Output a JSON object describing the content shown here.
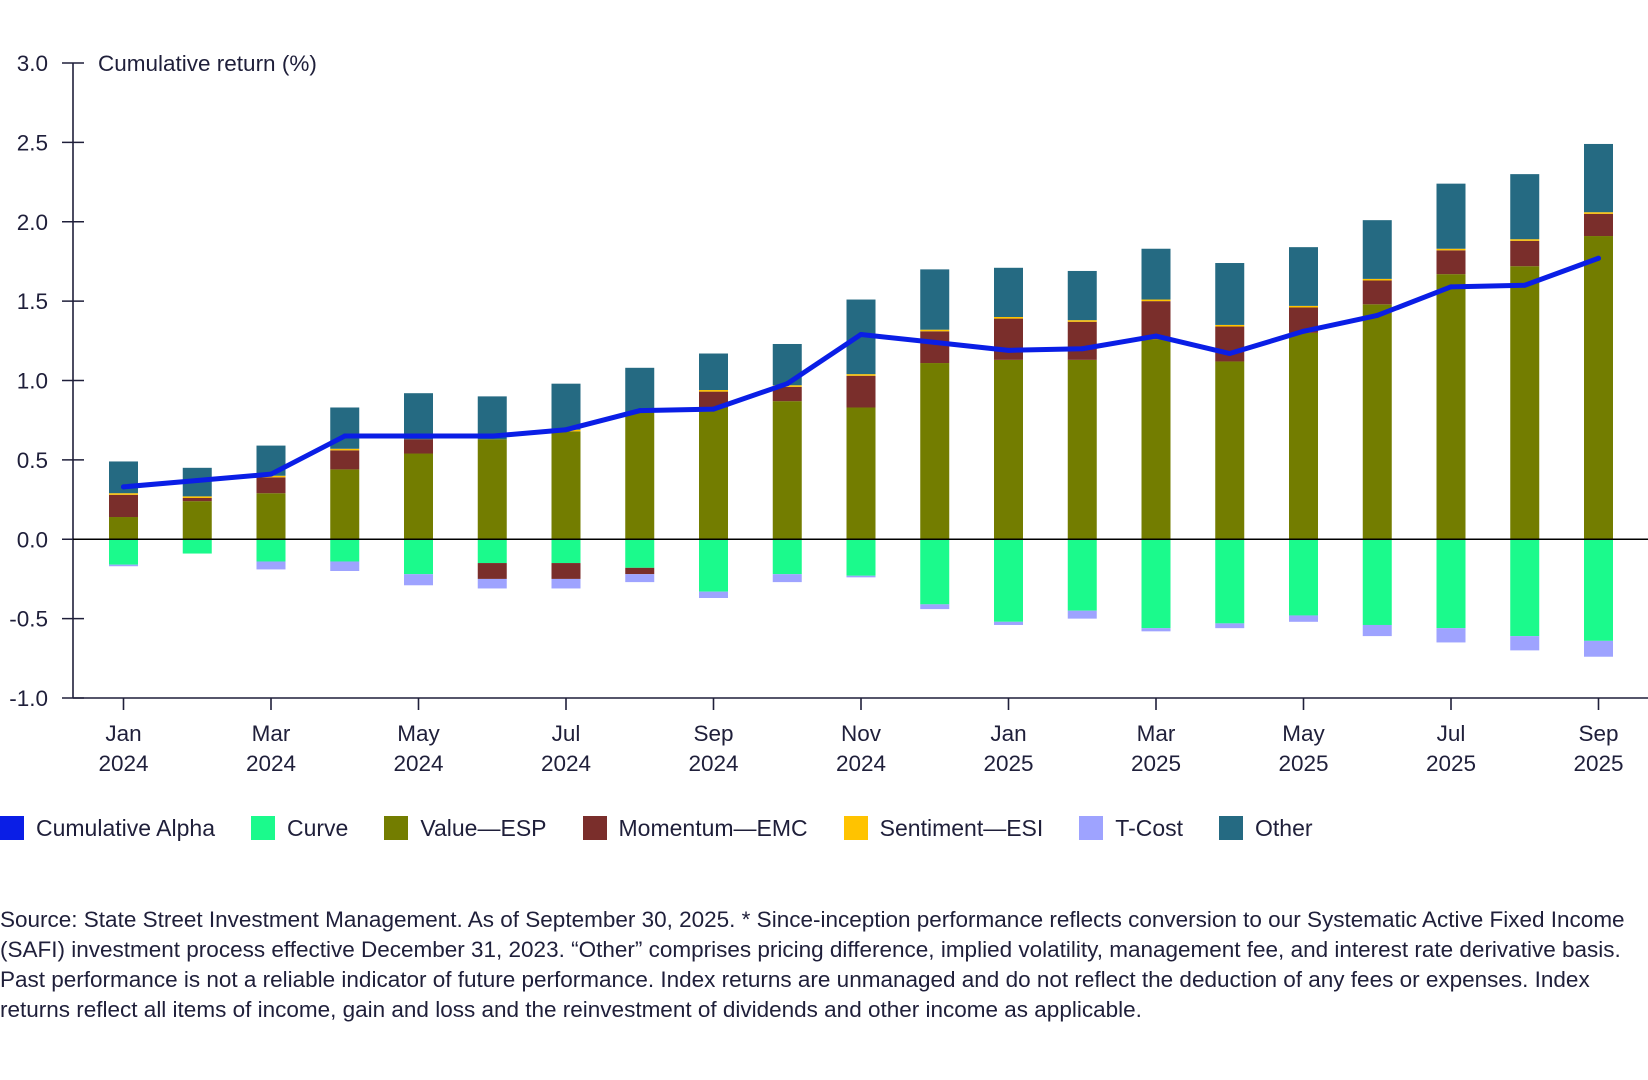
{
  "colors": {
    "alpha": "#0a1ee6",
    "curve": "#1bfa8c",
    "value": "#737d00",
    "momentum": "#7a2e2b",
    "sentiment": "#ffc300",
    "tcost": "#9ea3ff",
    "other": "#256a82",
    "axis": "#1f1f3a"
  },
  "chart_data": {
    "type": "bar",
    "stacked": true,
    "ylabel": "Cumulative return (%)",
    "ylim": [
      -1.0,
      3.0
    ],
    "yticks": [
      -1.0,
      -0.5,
      0.0,
      0.5,
      1.0,
      1.5,
      2.0,
      2.5,
      3.0
    ],
    "ytick_labels": [
      "-1.0",
      "-0.5",
      "0.0",
      "0.5",
      "1.0",
      "1.5",
      "2.0",
      "2.5",
      "3.0"
    ],
    "categories": [
      "Jan 2024",
      "Feb 2024",
      "Mar 2024",
      "Apr 2024",
      "May 2024",
      "Jun 2024",
      "Jul 2024",
      "Aug 2024",
      "Sep 2024",
      "Oct 2024",
      "Nov 2024",
      "Dec 2024",
      "Jan 2025",
      "Feb 2025",
      "Mar 2025",
      "Apr 2025",
      "May 2025",
      "Jun 2025",
      "Jul 2025",
      "Aug 2025",
      "Sep 2025"
    ],
    "xtick_labels": [
      {
        "index": 0,
        "month": "Jan",
        "year": "2024"
      },
      {
        "index": 2,
        "month": "Mar",
        "year": "2024"
      },
      {
        "index": 4,
        "month": "May",
        "year": "2024"
      },
      {
        "index": 6,
        "month": "Jul",
        "year": "2024"
      },
      {
        "index": 8,
        "month": "Sep",
        "year": "2024"
      },
      {
        "index": 10,
        "month": "Nov",
        "year": "2024"
      },
      {
        "index": 12,
        "month": "Jan",
        "year": "2025"
      },
      {
        "index": 14,
        "month": "Mar",
        "year": "2025"
      },
      {
        "index": 16,
        "month": "May",
        "year": "2025"
      },
      {
        "index": 18,
        "month": "Jul",
        "year": "2025"
      },
      {
        "index": 20,
        "month": "Sep",
        "year": "2025"
      }
    ],
    "series": [
      {
        "name": "Curve",
        "key": "curve",
        "values": [
          -0.16,
          -0.09,
          -0.14,
          -0.14,
          -0.22,
          -0.15,
          -0.15,
          -0.18,
          -0.33,
          -0.22,
          -0.23,
          -0.41,
          -0.52,
          -0.45,
          -0.56,
          -0.53,
          -0.48,
          -0.54,
          -0.56,
          -0.61,
          -0.64
        ]
      },
      {
        "name": "Value—ESP",
        "key": "value",
        "values": [
          0.14,
          0.24,
          0.29,
          0.44,
          0.54,
          0.63,
          0.68,
          0.8,
          0.83,
          0.87,
          0.83,
          1.11,
          1.13,
          1.13,
          1.26,
          1.12,
          1.3,
          1.48,
          1.67,
          1.72,
          1.91
        ]
      },
      {
        "name": "Momentum—EMC",
        "key": "momentum",
        "values": [
          0.14,
          0.02,
          0.1,
          0.12,
          0.09,
          -0.1,
          -0.1,
          -0.04,
          0.1,
          0.09,
          0.2,
          0.2,
          0.26,
          0.24,
          0.24,
          0.22,
          0.16,
          0.15,
          0.15,
          0.16,
          0.14
        ]
      },
      {
        "name": "Sentiment—ESI",
        "key": "sentiment",
        "values": [
          0.01,
          0.01,
          0.01,
          0.01,
          0.0,
          0.0,
          0.01,
          0.0,
          0.01,
          0.01,
          0.01,
          0.01,
          0.01,
          0.01,
          0.01,
          0.01,
          0.01,
          0.01,
          0.01,
          0.01,
          0.01
        ]
      },
      {
        "name": "T-Cost",
        "key": "tcost",
        "values": [
          -0.01,
          0.0,
          -0.05,
          -0.06,
          -0.07,
          -0.06,
          -0.06,
          -0.05,
          -0.04,
          -0.05,
          -0.01,
          -0.03,
          -0.02,
          -0.05,
          -0.02,
          -0.03,
          -0.04,
          -0.07,
          -0.09,
          -0.09,
          -0.1
        ]
      },
      {
        "name": "Other",
        "key": "other",
        "values": [
          0.2,
          0.18,
          0.19,
          0.26,
          0.29,
          0.27,
          0.29,
          0.28,
          0.23,
          0.26,
          0.47,
          0.38,
          0.31,
          0.31,
          0.32,
          0.39,
          0.37,
          0.37,
          0.41,
          0.41,
          0.43
        ]
      }
    ],
    "line": {
      "name": "Cumulative Alpha",
      "key": "alpha",
      "values": [
        0.33,
        0.37,
        0.41,
        0.65,
        0.65,
        0.65,
        0.69,
        0.81,
        0.82,
        0.98,
        1.29,
        1.24,
        1.19,
        1.2,
        1.28,
        1.17,
        1.31,
        1.41,
        1.59,
        1.6,
        1.77
      ]
    }
  },
  "legend": {
    "items": [
      {
        "label": "Cumulative Alpha",
        "color_key": "alpha"
      },
      {
        "label": "Curve",
        "color_key": "curve"
      },
      {
        "label": "Value—ESP",
        "color_key": "value"
      },
      {
        "label": "Momentum—EMC",
        "color_key": "momentum"
      },
      {
        "label": "Sentiment—ESI",
        "color_key": "sentiment"
      },
      {
        "label": "T-Cost",
        "color_key": "tcost"
      },
      {
        "label": "Other",
        "color_key": "other"
      }
    ]
  },
  "source_note": "Source: State Street Investment Management. As of September 30, 2025. * Since-inception performance reflects conversion to our Systematic Active Fixed Income (SAFI) investment process effective December 31, 2023. “Other” comprises pricing difference, implied volatility, management fee, and interest rate derivative basis. Past performance is not a reliable indicator of future performance. Index returns are unmanaged and do not reflect the deduction of any fees or expenses. Index returns reflect all items of income, gain and loss and the reinvestment of dividends and other income as applicable."
}
